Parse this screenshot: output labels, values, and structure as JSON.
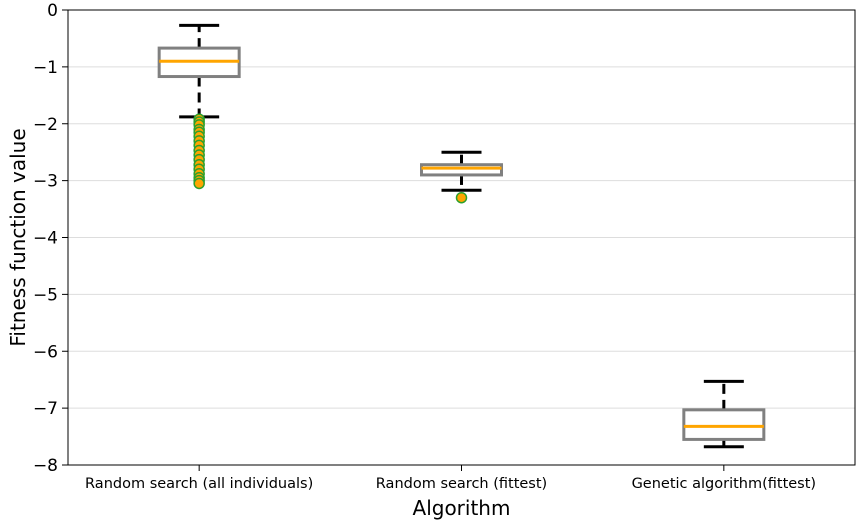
{
  "chart_data": {
    "type": "box",
    "title": "",
    "xlabel": "Algorithm",
    "ylabel": "Fitness function value",
    "ylim": [
      -8,
      0
    ],
    "yticks": [
      0,
      -1,
      -2,
      -3,
      -4,
      -5,
      -6,
      -7,
      -8
    ],
    "ytick_labels": [
      "0",
      "−1",
      "−2",
      "−3",
      "−4",
      "−5",
      "−6",
      "−7",
      "−8"
    ],
    "grid": "horizontal",
    "categories": [
      "Random search (all individuals)",
      "Random search (fittest)",
      "Genetic algorithm(fittest)"
    ],
    "boxes": [
      {
        "category": "Random search (all individuals)",
        "whisker_low": -1.88,
        "q1": -1.17,
        "median": -0.9,
        "q3": -0.67,
        "whisker_high": -0.27,
        "outliers": [
          -1.92,
          -1.97,
          -2.02,
          -2.1,
          -2.15,
          -2.22,
          -2.3,
          -2.38,
          -2.47,
          -2.55,
          -2.63,
          -2.72,
          -2.8,
          -2.88,
          -2.95,
          -3.0,
          -3.05
        ]
      },
      {
        "category": "Random search (fittest)",
        "whisker_low": -3.17,
        "q1": -2.9,
        "median": -2.78,
        "q3": -2.72,
        "whisker_high": -2.5,
        "outliers": [
          -3.3
        ]
      },
      {
        "category": "Genetic algorithm(fittest)",
        "whisker_low": -7.68,
        "q1": -7.55,
        "median": -7.32,
        "q3": -7.03,
        "whisker_high": -6.53,
        "outliers": []
      }
    ],
    "colors": {
      "box_edge": "#808080",
      "median": "#ffa500",
      "whisker": "#000000",
      "outlier_fill": "#ffa500",
      "outlier_edge": "#2ca02c",
      "grid": "#dddddd"
    }
  }
}
